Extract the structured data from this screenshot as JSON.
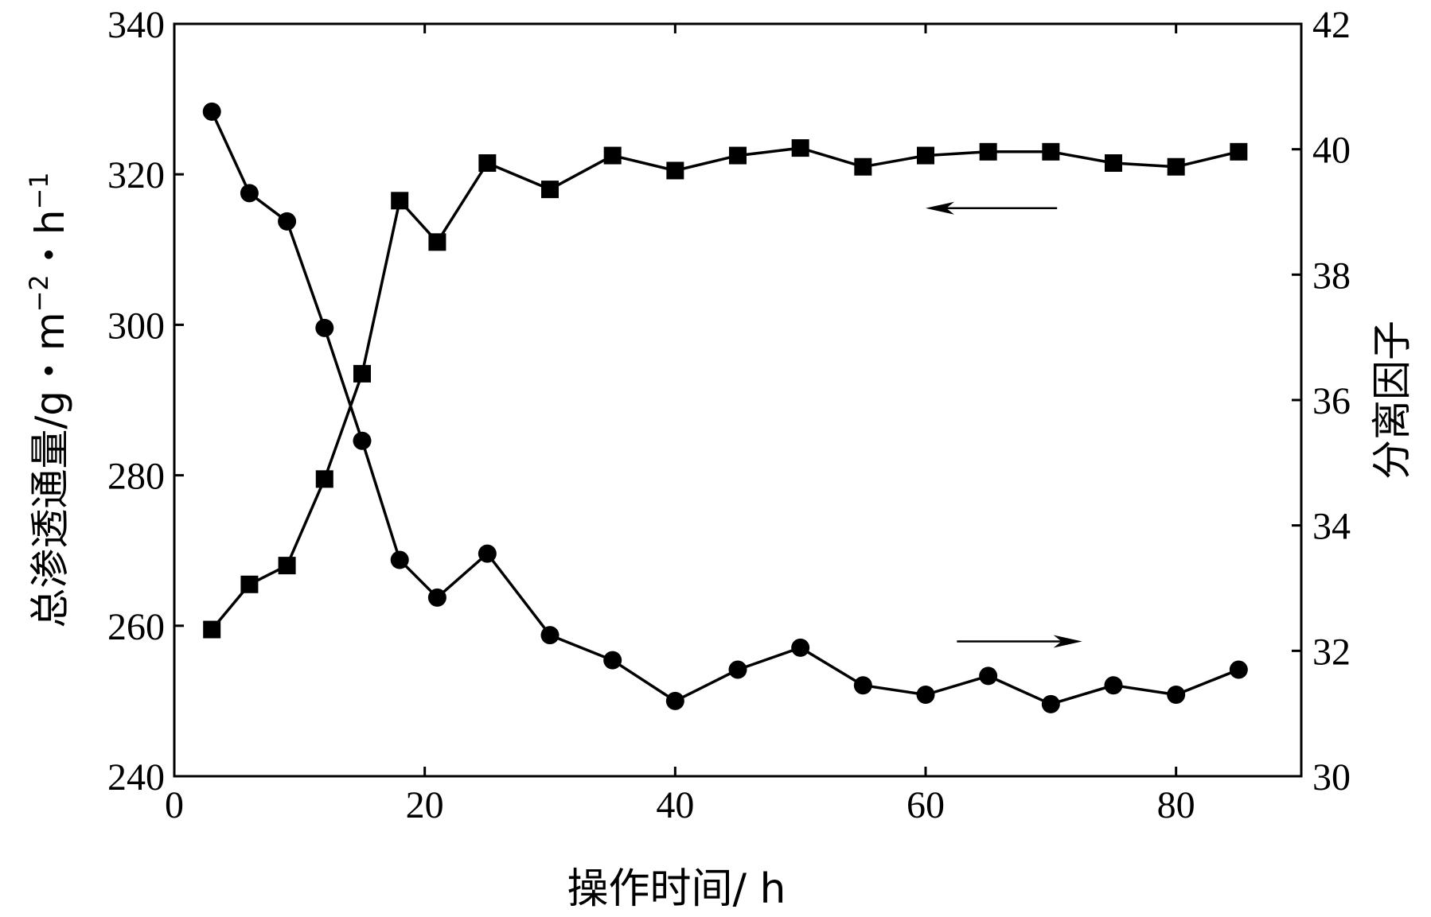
{
  "chart_data": {
    "type": "line",
    "xlabel": "操作时间/ h",
    "ylabel_left": "总渗透通量/g・m",
    "ylabel_left_sup1": "−2",
    "ylabel_left_mid": "・h",
    "ylabel_left_sup2": "−1",
    "ylabel_right": "分离因子",
    "xlim": [
      0,
      90
    ],
    "xticks": [
      0,
      20,
      40,
      60,
      80
    ],
    "ylim_left": [
      240,
      340
    ],
    "yticks_left": [
      240,
      260,
      280,
      300,
      320,
      340
    ],
    "ylim_right": [
      30,
      42
    ],
    "yticks_right": [
      30,
      32,
      34,
      36,
      38,
      40,
      42
    ],
    "grid": false,
    "series": [
      {
        "marker": "square",
        "axis": "left",
        "x": [
          3,
          6,
          9,
          12,
          15,
          18,
          21,
          25,
          30,
          35,
          40,
          45,
          50,
          55,
          60,
          65,
          70,
          75,
          80,
          85
        ],
        "values": [
          259.5,
          265.5,
          268,
          279.5,
          293.5,
          316.5,
          311,
          321.5,
          318,
          322.5,
          320.5,
          322.5,
          323.5,
          321,
          322.5,
          323,
          323,
          321.5,
          321,
          323
        ]
      },
      {
        "marker": "circle",
        "axis": "right",
        "x": [
          3,
          6,
          9,
          12,
          15,
          18,
          21,
          25,
          30,
          35,
          40,
          45,
          50,
          55,
          60,
          65,
          70,
          75,
          80,
          85
        ],
        "values": [
          40.6,
          39.3,
          38.85,
          37.15,
          35.35,
          33.45,
          32.85,
          33.55,
          32.25,
          31.85,
          31.2,
          31.7,
          32.05,
          31.45,
          31.3,
          31.6,
          31.15,
          31.45,
          31.3,
          31.7
        ]
      }
    ],
    "annotations": [
      {
        "type": "arrow",
        "direction": "left",
        "points_to": "left-axis",
        "series": 0,
        "x_from": 70.5,
        "x_to": 60,
        "y_left": 315.5
      },
      {
        "type": "arrow",
        "direction": "right",
        "points_to": "right-axis",
        "series": 1,
        "x_from": 62.5,
        "x_to": 72.5,
        "y_right": 32.15
      }
    ]
  }
}
